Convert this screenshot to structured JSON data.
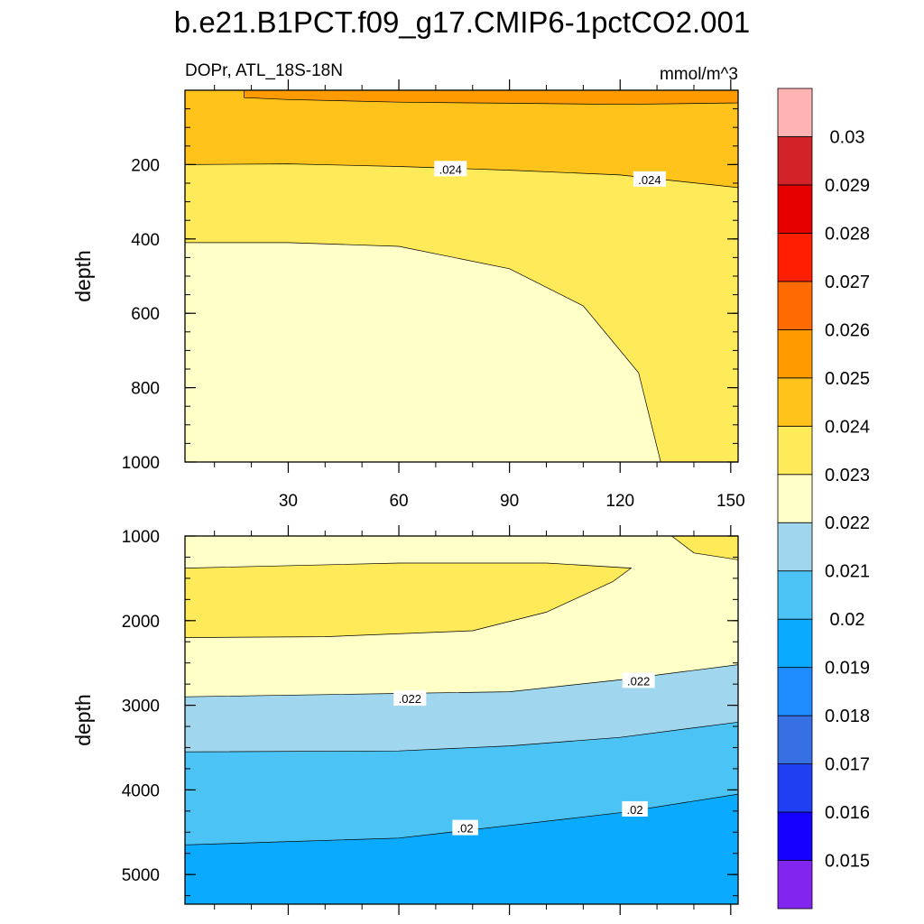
{
  "chart_data": {
    "type": "contour",
    "title": "b.e21.B1PCT.f09_g17.CMIP6-1pctCO2.001",
    "variable": "DOPr, ATL_18S-18N",
    "units": "mmol/m^3",
    "ylabel": "depth",
    "x_ticks": [
      "30",
      "60",
      "90",
      "120",
      "150"
    ],
    "x_tick_values": [
      30,
      60,
      90,
      120,
      150
    ],
    "x_range": [
      2,
      152
    ],
    "panels": [
      {
        "name": "upper",
        "y_range": [
          0,
          1000
        ],
        "y_ticks": [
          "200",
          "400",
          "600",
          "800",
          "1000"
        ],
        "y_tick_values": [
          200,
          400,
          600,
          800,
          1000
        ],
        "shows_x_tick_labels": true,
        "bands": [
          {
            "value_range": "0.025-0.026",
            "color": "#ff9a00",
            "boundary_depth_at_x": [
              [
                18,
                20
              ],
              [
                30,
                25
              ],
              [
                60,
                32
              ],
              [
                90,
                35
              ],
              [
                120,
                38
              ],
              [
                152,
                34
              ]
            ]
          },
          {
            "value_range": "0.024-0.025",
            "color": "#ffc31c",
            "boundary_depth_at_x": [
              [
                2,
                200
              ],
              [
                30,
                198
              ],
              [
                60,
                205
              ],
              [
                90,
                215
              ],
              [
                120,
                228
              ],
              [
                152,
                262
              ]
            ]
          },
          {
            "value_range": "0.023-0.024",
            "color": "#ffea5a",
            "boundary_depth_at_x": [
              [
                2,
                410
              ],
              [
                30,
                410
              ],
              [
                60,
                420
              ],
              [
                90,
                480
              ],
              [
                110,
                580
              ],
              [
                125,
                760
              ],
              [
                131,
                1000
              ]
            ]
          },
          {
            "value_range": "0.022-0.023",
            "color": "#ffffc8"
          }
        ],
        "contour_labels": [
          {
            "text": ".024",
            "x": 74,
            "depth": 212
          },
          {
            "text": ".024",
            "x": 128,
            "depth": 240
          }
        ]
      },
      {
        "name": "lower",
        "y_range": [
          1000,
          5350
        ],
        "y_ticks": [
          "1000",
          "2000",
          "3000",
          "4000",
          "5000"
        ],
        "y_tick_values": [
          1000,
          2000,
          3000,
          4000,
          5000
        ],
        "shows_x_tick_labels": false,
        "bands": [
          {
            "value_range": "0.022-0.023",
            "color": "#ffffc8",
            "region": "background"
          },
          {
            "value_range": "0.023-0.024",
            "color": "#ffea5a",
            "region": "tongue",
            "outline": [
              [
                2,
                1380
              ],
              [
                60,
                1320
              ],
              [
                100,
                1320
              ],
              [
                123,
                1380
              ],
              [
                118,
                1540
              ],
              [
                100,
                1900
              ],
              [
                80,
                2120
              ],
              [
                40,
                2190
              ],
              [
                2,
                2200
              ]
            ]
          },
          {
            "value_range": "0.023-0.024",
            "color": "#ffea5a",
            "region": "corner",
            "outline": [
              [
                134,
                1000
              ],
              [
                152,
                1000
              ],
              [
                152,
                1280
              ],
              [
                140,
                1200
              ]
            ]
          },
          {
            "value_range": "0.021-0.022",
            "color": "#a0d7ee",
            "boundary_depth_at_x": [
              [
                2,
                2900
              ],
              [
                60,
                2860
              ],
              [
                90,
                2840
              ],
              [
                120,
                2700
              ],
              [
                152,
                2520
              ]
            ]
          },
          {
            "value_range": "0.020-0.021",
            "color": "#4bc3f5",
            "boundary_depth_at_x": [
              [
                2,
                3550
              ],
              [
                60,
                3540
              ],
              [
                90,
                3480
              ],
              [
                120,
                3380
              ],
              [
                152,
                3200
              ]
            ]
          },
          {
            "value_range": "0.019-0.020",
            "color": "#0aaaff",
            "boundary_depth_at_x": [
              [
                2,
                4650
              ],
              [
                60,
                4570
              ],
              [
                90,
                4420
              ],
              [
                120,
                4270
              ],
              [
                152,
                4050
              ]
            ]
          }
        ],
        "contour_labels": [
          {
            "text": ".022",
            "x": 63,
            "depth": 2920
          },
          {
            "text": ".022",
            "x": 125,
            "depth": 2710
          },
          {
            "text": ".02",
            "x": 78,
            "depth": 4450
          },
          {
            "text": ".02",
            "x": 124,
            "depth": 4230
          }
        ]
      }
    ],
    "colorbar": {
      "colors": [
        "#8225ee",
        "#1500ff",
        "#203ef2",
        "#3770e3",
        "#1e8cff",
        "#0aaaff",
        "#4bc3f5",
        "#a0d7ee",
        "#ffffc8",
        "#ffea5a",
        "#ffc31c",
        "#ff9a00",
        "#ff6b00",
        "#ff1e00",
        "#e60000",
        "#d22328",
        "#ffb4b4"
      ],
      "labels": [
        "0.015",
        "0.016",
        "0.017",
        "0.018",
        "0.019",
        "0.02",
        "0.021",
        "0.022",
        "0.023",
        "0.024",
        "0.025",
        "0.026",
        "0.027",
        "0.028",
        "0.029",
        "0.03"
      ]
    }
  }
}
